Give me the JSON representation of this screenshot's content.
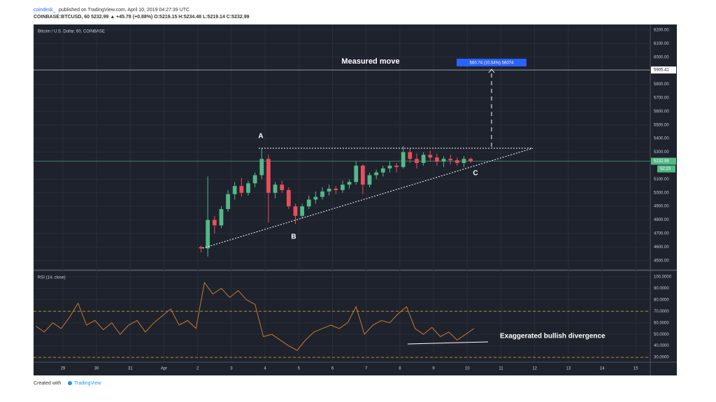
{
  "header": {
    "publisher": "coindesk_",
    "published": "published on TradingView.com, April 10, 2019 04:27:39 UTC",
    "quote": "COINBASE:BTCUSD, 60 5232.99 ▲ +45.78 (+0.88%) O:5219.15 H:5234.48 L:5219.14 C:5232.99"
  },
  "footer": {
    "created": "Created with",
    "brand": "TradingView"
  },
  "chart_data": [
    {
      "type": "candlestick",
      "title": "Bitcoin / U.S. Dollar, 60, COINBASE",
      "x": [
        4.1,
        4.3,
        4.5,
        4.7,
        4.9,
        5.1,
        5.3,
        5.5,
        5.7,
        5.9,
        6.1,
        6.3,
        6.5,
        6.7,
        6.9,
        7.1,
        7.3,
        7.5,
        7.7,
        7.9,
        8.1,
        8.3,
        8.5,
        8.7,
        8.9,
        9.1,
        9.3,
        9.5,
        9.7,
        9.9,
        10.1,
        10.3,
        10.5,
        10.7,
        10.9,
        11.1,
        11.3,
        11.5,
        11.7,
        11.9,
        12.1
      ],
      "open": [
        4600,
        4590,
        4800,
        4760,
        4880,
        4990,
        5050,
        5000,
        5070,
        5130,
        5250,
        5000,
        5060,
        5020,
        4900,
        4830,
        4900,
        4950,
        4970,
        5010,
        5030,
        5020,
        5060,
        5080,
        5200,
        5060,
        5130,
        5150,
        5180,
        5200,
        5190,
        5300,
        5250,
        5220,
        5280,
        5260,
        5230,
        5250,
        5240,
        5220,
        5250
      ],
      "high": [
        4610,
        5120,
        4830,
        4900,
        5020,
        5080,
        5110,
        5090,
        5150,
        5330,
        5280,
        5080,
        5090,
        5040,
        4920,
        4920,
        4980,
        5010,
        5040,
        5060,
        5050,
        5090,
        5100,
        5230,
        5210,
        5150,
        5170,
        5200,
        5230,
        5220,
        5345,
        5330,
        5290,
        5300,
        5310,
        5290,
        5270,
        5280,
        5260,
        5270,
        5260
      ],
      "low": [
        4560,
        4530,
        4700,
        4740,
        4860,
        4950,
        4970,
        4980,
        5040,
        5100,
        4780,
        4960,
        5000,
        4880,
        4770,
        4810,
        4880,
        4920,
        4950,
        4980,
        4990,
        5000,
        5030,
        5060,
        4990,
        5040,
        5100,
        5120,
        5150,
        5150,
        5180,
        5220,
        5180,
        5200,
        5230,
        5200,
        5190,
        5210,
        5200,
        5190,
        5220
      ],
      "close": [
        4590,
        4800,
        4760,
        4880,
        4990,
        5050,
        5000,
        5070,
        5130,
        5250,
        5000,
        5060,
        5020,
        4900,
        4830,
        4900,
        4950,
        4970,
        5010,
        5030,
        5020,
        5060,
        5080,
        5200,
        5060,
        5130,
        5150,
        5180,
        5200,
        5190,
        5300,
        5250,
        5220,
        5280,
        5260,
        5230,
        5250,
        5240,
        5220,
        5250,
        5233
      ],
      "up_color": "#53b987",
      "down_color": "#eb4d5c",
      "xlim": [
        -0.87,
        17.43
      ],
      "xticks": [
        {
          "value": 0,
          "label": "29"
        },
        {
          "value": 1,
          "label": "30"
        },
        {
          "value": 2,
          "label": "31"
        },
        {
          "value": 3,
          "label": "Apr"
        },
        {
          "value": 4,
          "label": "2"
        },
        {
          "value": 5,
          "label": "3"
        },
        {
          "value": 6,
          "label": "4"
        },
        {
          "value": 7,
          "label": "5"
        },
        {
          "value": 8,
          "label": "6"
        },
        {
          "value": 9,
          "label": "7"
        },
        {
          "value": 10,
          "label": "8"
        },
        {
          "value": 11,
          "label": "9"
        },
        {
          "value": 12,
          "label": "10"
        },
        {
          "value": 13,
          "label": "11"
        },
        {
          "value": 14,
          "label": "12"
        },
        {
          "value": 15,
          "label": "13"
        },
        {
          "value": 16,
          "label": "14"
        },
        {
          "value": 17,
          "label": "15"
        }
      ],
      "ylim": [
        4437,
        6241
      ],
      "yticks": [
        {
          "value": 6200,
          "label": "6200.00"
        },
        {
          "value": 6100,
          "label": "6100.00"
        },
        {
          "value": 6000,
          "label": "6000.00"
        },
        {
          "value": 5800,
          "label": "5800.00"
        },
        {
          "value": 5700,
          "label": "5700.00"
        },
        {
          "value": 5600,
          "label": "5600.00"
        },
        {
          "value": 5500,
          "label": "5500.00"
        },
        {
          "value": 5400,
          "label": "5400.00"
        },
        {
          "value": 5300,
          "label": "5300.00"
        },
        {
          "value": 5100,
          "label": "5100.00"
        },
        {
          "value": 5000,
          "label": "5000.00"
        },
        {
          "value": 4900,
          "label": "4900.00"
        },
        {
          "value": 4800,
          "label": "4800.00"
        },
        {
          "value": 4700,
          "label": "4700.00"
        },
        {
          "value": 4600,
          "label": "4600.00"
        },
        {
          "value": 4500,
          "label": "4500.00"
        }
      ],
      "grid": true,
      "target_level": {
        "value": 5905.41,
        "label": "5905.41"
      },
      "last_price": {
        "value": 5232.99,
        "label": "5232.99"
      },
      "countdown": "52:23",
      "annotations": {
        "measured_move": "Measured move",
        "measure_box": "560.74 (10.54%) 56074",
        "a": "A",
        "b": "B",
        "c": "C"
      }
    },
    {
      "type": "line",
      "title": "RSI (14, close)",
      "x": [
        -0.8,
        -0.55,
        -0.3,
        -0.05,
        0.2,
        0.45,
        0.7,
        0.95,
        1.2,
        1.45,
        1.7,
        1.95,
        2.2,
        2.45,
        2.7,
        2.95,
        3.2,
        3.45,
        3.7,
        3.95,
        4.2,
        4.45,
        4.7,
        4.95,
        5.2,
        5.45,
        5.7,
        5.95,
        6.2,
        6.45,
        6.7,
        6.95,
        7.2,
        7.45,
        7.7,
        7.95,
        8.2,
        8.45,
        8.7,
        8.95,
        9.2,
        9.45,
        9.7,
        9.95,
        10.2,
        10.45,
        10.7,
        10.95,
        11.2,
        11.45,
        11.7,
        11.95,
        12.2
      ],
      "values": [
        57,
        52,
        60,
        55,
        65,
        77,
        58,
        62,
        54,
        60,
        50,
        58,
        62,
        52,
        60,
        66,
        72,
        58,
        62,
        55,
        95,
        85,
        90,
        82,
        88,
        80,
        76,
        48,
        50,
        45,
        40,
        36,
        45,
        52,
        55,
        58,
        55,
        60,
        74,
        50,
        58,
        62,
        60,
        68,
        74,
        55,
        50,
        56,
        48,
        52,
        45,
        50,
        55
      ],
      "color": "#c97a2a",
      "ylim": [
        25.8,
        104.8
      ],
      "yticks": [
        {
          "value": 100,
          "label": "100.0000"
        },
        {
          "value": 90,
          "label": "90.0000"
        },
        {
          "value": 80,
          "label": "80.0000"
        },
        {
          "value": 70,
          "label": "70.0000"
        },
        {
          "value": 60,
          "label": "60.0000"
        },
        {
          "value": 50,
          "label": "50.0000"
        },
        {
          "value": 40,
          "label": "40.0000"
        },
        {
          "value": 30,
          "label": "30.0000"
        }
      ],
      "levels": [
        70,
        30
      ],
      "annotation": "Exaggerated bullish divergence"
    }
  ]
}
